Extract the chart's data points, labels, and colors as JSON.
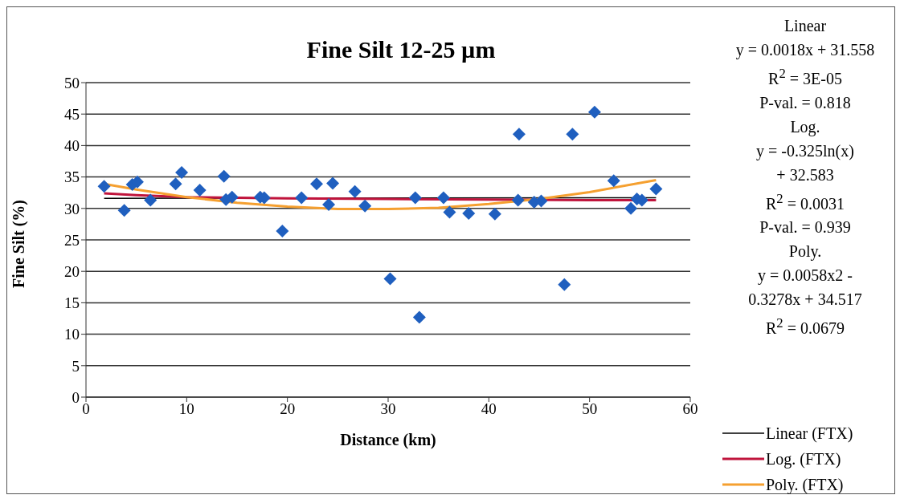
{
  "chart_data": {
    "type": "scatter",
    "title": "Fine Silt 12-25 µm",
    "xlabel": "Distance (km)",
    "ylabel": "Fine Silt (%)",
    "xlim": [
      0,
      60
    ],
    "xticks": [
      0,
      10,
      20,
      30,
      40,
      50,
      60
    ],
    "ylim": [
      0,
      50
    ],
    "yticks": [
      0,
      5,
      10,
      15,
      20,
      25,
      30,
      35,
      40,
      45,
      50
    ],
    "grid": "y",
    "legend": "right",
    "annotations": [
      "Linear",
      "y = 0.0018x + 31.558",
      "R$^{2}$ = 3E-05",
      "P-val. = 0.818",
      "Log.",
      "y = -0.325ln(x)",
      "+ 32.583",
      "R$^{2}$ = 0.0031",
      "P-val. = 0.939",
      "Poly.",
      "y = 0.0058x2 -",
      "0.3278x + 34.517",
      "R$^{2}$ = 0.0679"
    ],
    "series": [
      {
        "marker": "diamond",
        "color": "#1f5fbf",
        "x": [
          1.8,
          3.8,
          4.6,
          5.1,
          6.4,
          8.9,
          9.5,
          11.3,
          13.7,
          13.9,
          14.5,
          17.3,
          17.7,
          19.5,
          21.4,
          22.9,
          24.1,
          24.5,
          26.7,
          27.7,
          30.2,
          32.7,
          33.1,
          35.5,
          36.1,
          38.0,
          40.6,
          42.9,
          43.0,
          44.5,
          45.2,
          47.5,
          48.3,
          50.5,
          52.4,
          54.1,
          54.7,
          55.2,
          56.6
        ],
        "values": [
          33.5,
          29.7,
          33.8,
          34.2,
          31.3,
          33.9,
          35.7,
          32.9,
          35.1,
          31.4,
          31.8,
          31.8,
          31.7,
          26.4,
          31.7,
          33.9,
          30.6,
          34.0,
          32.7,
          30.4,
          18.8,
          31.7,
          12.7,
          31.7,
          29.4,
          29.2,
          29.1,
          31.3,
          41.8,
          31.0,
          31.2,
          17.9,
          41.8,
          45.3,
          34.4,
          30.0,
          31.5,
          31.3,
          33.1
        ]
      },
      {
        "type": "line",
        "marker": "none",
        "name": "Linear (FTX)",
        "color": "#000000",
        "x": [
          1.8,
          56.6
        ],
        "values": [
          31.6,
          31.7
        ]
      },
      {
        "type": "line",
        "marker": "none",
        "name": "Log. (FTX)",
        "color": "#c0143c",
        "x": [
          1.8,
          5,
          10,
          20,
          30,
          40,
          50,
          56.6
        ],
        "values": [
          32.4,
          32.1,
          31.8,
          31.6,
          31.5,
          31.4,
          31.3,
          31.3
        ]
      },
      {
        "type": "line",
        "marker": "none",
        "name": "Poly. (FTX)",
        "color": "#f5a030",
        "x": [
          1.8,
          5,
          10,
          15,
          20,
          25,
          30,
          35,
          40,
          45,
          50,
          56.6
        ],
        "values": [
          33.9,
          33.0,
          31.8,
          30.9,
          30.3,
          29.9,
          29.9,
          30.1,
          30.7,
          31.5,
          32.6,
          34.5
        ]
      }
    ]
  }
}
